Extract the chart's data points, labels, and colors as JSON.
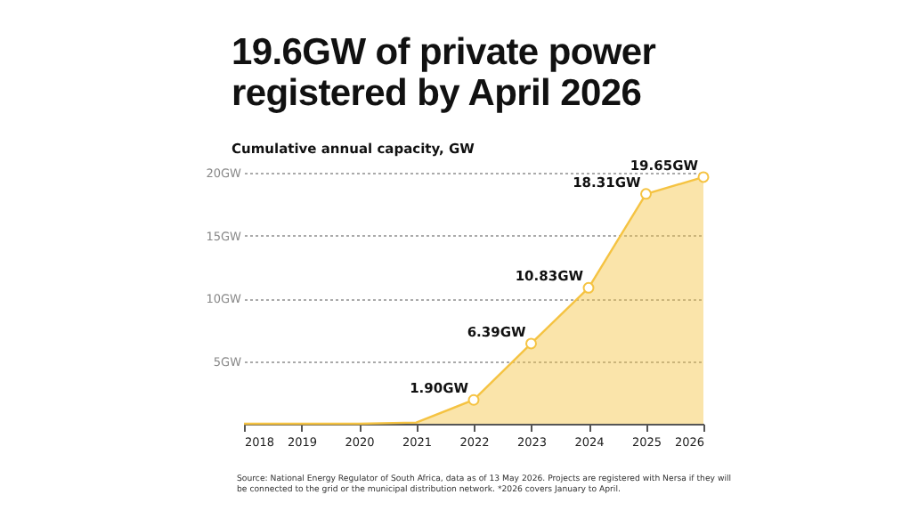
{
  "chart_data": {
    "type": "area",
    "title": "19.6GW of private power registered by April 2026",
    "subtitle": "Cumulative annual capacity, GW",
    "x": [
      2018,
      2019,
      2020,
      2021,
      2022,
      2023,
      2024,
      2025,
      2026
    ],
    "series": [
      {
        "color": "#f5c342",
        "values": [
          0,
          0,
          0,
          0.1,
          1.9,
          6.39,
          10.83,
          18.31,
          19.65
        ],
        "value_labels": [
          null,
          null,
          null,
          null,
          "1.90GW",
          "6.39GW",
          "10.83GW",
          "18.31GW",
          "19.65GW"
        ]
      }
    ],
    "xlim": [
      2018,
      2026
    ],
    "xticks": [
      2018,
      2019,
      2020,
      2021,
      2022,
      2023,
      2024,
      2025,
      2026
    ],
    "ylim": [
      0,
      20
    ],
    "yticks": [
      {
        "value": 0,
        "label": null
      },
      {
        "value": 5,
        "label": "5GW"
      },
      {
        "value": 10,
        "label": "10GW"
      },
      {
        "value": 15,
        "label": "15GW"
      },
      {
        "value": 20,
        "label": "20GW"
      }
    ],
    "grid": "y",
    "marker": "circle",
    "annotations": [
      "Source: National Energy Regulator of South Africa, data as of 13 May 2026. Projects are registered with Nersa if they will be connected to the grid or the municipal distribution network. *2026 covers January to April."
    ]
  }
}
